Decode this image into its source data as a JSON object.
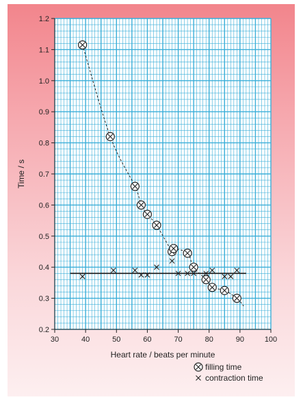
{
  "chart_data": {
    "type": "scatter",
    "xlabel": "Heart rate / beats per minute",
    "ylabel": "Time / s",
    "xlim": [
      30,
      100
    ],
    "ylim": [
      0.2,
      1.2
    ],
    "x_ticks": [
      "30",
      "40",
      "50",
      "60",
      "70",
      "80",
      "90",
      "100"
    ],
    "y_ticks": [
      "0.2",
      "0.3",
      "0.4",
      "0.5",
      "0.6",
      "0.7",
      "0.8",
      "0.9",
      "1.0",
      "1.1",
      "1.2"
    ],
    "grid": true,
    "legend_position": "bottom-right",
    "series": [
      {
        "name": "filling time",
        "marker": "circled-x",
        "points": [
          [
            39,
            1.115
          ],
          [
            48,
            0.82
          ],
          [
            56,
            0.66
          ],
          [
            58,
            0.6
          ],
          [
            60,
            0.57
          ],
          [
            63,
            0.535
          ],
          [
            68,
            0.45
          ],
          [
            68.5,
            0.46
          ],
          [
            73,
            0.445
          ],
          [
            75,
            0.4
          ],
          [
            79,
            0.36
          ],
          [
            81,
            0.335
          ],
          [
            85,
            0.325
          ],
          [
            89,
            0.3
          ]
        ]
      },
      {
        "name": "contraction time",
        "marker": "x",
        "points": [
          [
            39,
            0.37
          ],
          [
            49,
            0.39
          ],
          [
            56,
            0.39
          ],
          [
            58,
            0.375
          ],
          [
            60,
            0.375
          ],
          [
            63,
            0.4
          ],
          [
            68,
            0.42
          ],
          [
            70,
            0.38
          ],
          [
            73,
            0.38
          ],
          [
            75,
            0.38
          ],
          [
            79,
            0.38
          ],
          [
            81,
            0.39
          ],
          [
            85,
            0.37
          ],
          [
            87,
            0.37
          ],
          [
            89,
            0.39
          ]
        ]
      }
    ],
    "trend_lines": [
      {
        "for": "filling time",
        "style": "dashed",
        "shape": "curve"
      },
      {
        "for": "contraction time",
        "style": "solid",
        "shape": "horizontal",
        "x": [
          35,
          92
        ],
        "y": [
          0.38,
          0.38
        ]
      }
    ]
  },
  "colors": {
    "grid": "#3aaed8",
    "plot_background": "#ffffff",
    "ink": "#222222",
    "panel_top": "#f2858c",
    "panel_bottom": "#fdeff0"
  }
}
